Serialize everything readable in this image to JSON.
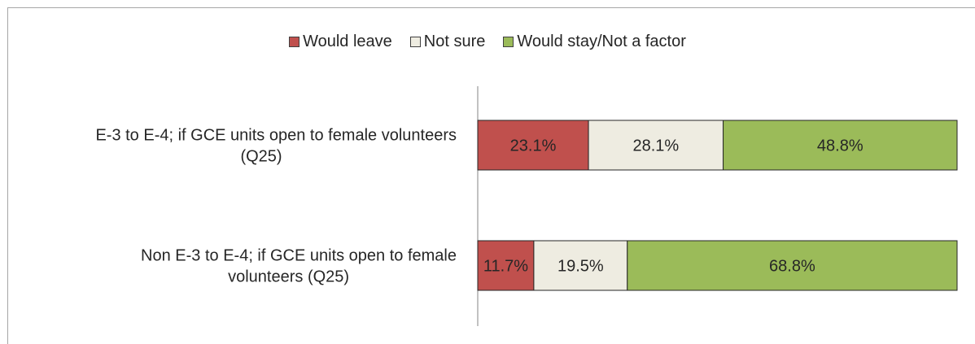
{
  "chart_data": {
    "type": "bar",
    "orientation": "horizontal",
    "stacked": true,
    "percent_stacked": true,
    "categories": [
      [
        "E-3 to E-4; if GCE units open to female volunteers",
        "(Q25)"
      ],
      [
        "Non E-3 to E-4; if GCE units open to female",
        "volunteers (Q25)"
      ]
    ],
    "series": [
      {
        "name": "Would leave",
        "color": "#c0504d",
        "values": [
          23.1,
          11.7
        ],
        "labels": [
          "23.1%",
          "11.7%"
        ]
      },
      {
        "name": "Not sure",
        "color": "#eeece1",
        "values": [
          28.1,
          19.5
        ],
        "labels": [
          "28.1%",
          "19.5%"
        ]
      },
      {
        "name": "Would stay/Not a factor",
        "color": "#9bbb59",
        "values": [
          48.8,
          68.8
        ],
        "labels": [
          "48.8%",
          "68.8%"
        ]
      }
    ],
    "xlim": [
      0,
      100
    ],
    "legend_position": "top",
    "grid": false
  }
}
